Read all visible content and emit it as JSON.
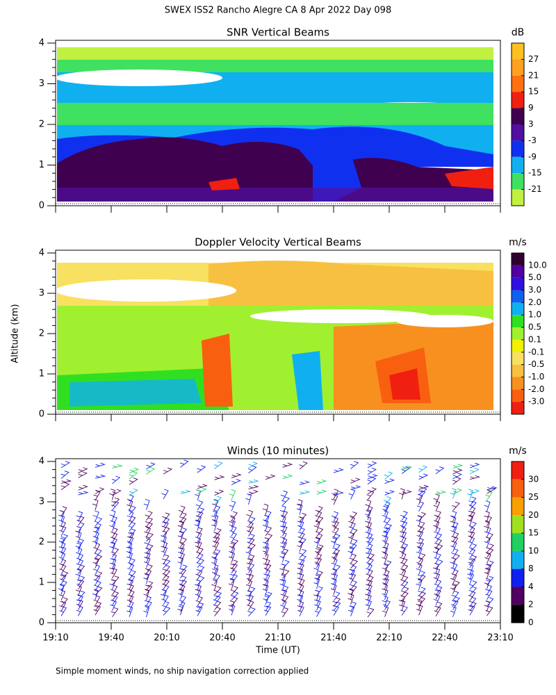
{
  "title": "SWEX ISS2 Rancho Alegre CA   8 Apr 2022 Day 098",
  "y_axis_label": "Altitude (km)",
  "footnote": "Simple moment winds, no ship navigation correction applied",
  "x_axis": {
    "label": "Time (UT)",
    "ticks": [
      "19:10",
      "19:40",
      "20:10",
      "20:40",
      "21:10",
      "21:40",
      "22:10",
      "22:40",
      "23:10"
    ]
  },
  "chart_data": [
    {
      "type": "heatmap",
      "title": "SNR Vertical Beams",
      "ylim": [
        0,
        4
      ],
      "yticks": [
        0,
        1,
        2,
        3,
        4
      ],
      "colorbar": {
        "unit": "dB",
        "colors": [
          "#ffc020",
          "#ffa020",
          "#ff7010",
          "#f02010",
          "#400050",
          "#5010a0",
          "#1030f0",
          "#10b0f0",
          "#40e060",
          "#c0f040"
        ],
        "ticks": [
          27,
          21,
          15,
          9,
          3,
          -3,
          -9,
          -15,
          -21
        ]
      }
    },
    {
      "type": "heatmap",
      "title": "Doppler Velocity Vertical Beams",
      "ylim": [
        0,
        4
      ],
      "yticks": [
        0,
        1,
        2,
        3,
        4
      ],
      "colorbar": {
        "unit": "m/s",
        "colors": [
          "#300030",
          "#5000a0",
          "#3010e0",
          "#1060f0",
          "#10b0f0",
          "#30e020",
          "#a0f030",
          "#f0f000",
          "#f8e060",
          "#f8c040",
          "#f89020",
          "#f86010",
          "#f02010"
        ],
        "ticks": [
          {
            "value": 10,
            "label": "10.0"
          },
          {
            "value": 5,
            "label": "5.0"
          },
          {
            "value": 3,
            "label": "3.0"
          },
          {
            "value": 2,
            "label": "2.0"
          },
          {
            "value": 1,
            "label": "1.0"
          },
          0.5,
          0.1,
          -0.1,
          -0.5,
          {
            "value": -1,
            "label": "-1.0"
          },
          {
            "value": -2,
            "label": "-2.0"
          },
          {
            "value": -3,
            "label": "-3.0"
          }
        ]
      }
    },
    {
      "type": "barbs",
      "title": "Winds (10 minutes)",
      "ylim": [
        0,
        4
      ],
      "yticks": [
        0,
        1,
        2,
        3,
        4
      ],
      "colorbar": {
        "unit": "m/s",
        "colors": [
          "#f02010",
          "#f86010",
          "#f8a000",
          "#a0e020",
          "#20d060",
          "#10b0f0",
          "#1020f0",
          "#500060",
          "#000000"
        ],
        "ticks": [
          30,
          25,
          20,
          15,
          10,
          8,
          4,
          2,
          0
        ]
      }
    }
  ]
}
